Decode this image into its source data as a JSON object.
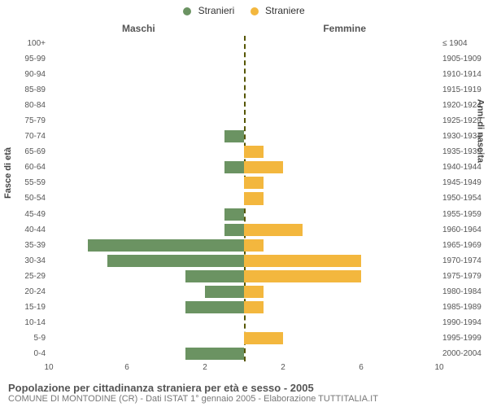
{
  "legend": {
    "male": {
      "label": "Stranieri",
      "color": "#6b9362"
    },
    "female": {
      "label": "Straniere",
      "color": "#f3b73e"
    }
  },
  "side_titles": {
    "left": "Maschi",
    "right": "Femmine"
  },
  "axis_titles": {
    "left": "Fasce di età",
    "right": "Anni di nascita"
  },
  "footer": {
    "title": "Popolazione per cittadinanza straniera per età e sesso - 2005",
    "subtitle": "COMUNE DI MONTODINE (CR) - Dati ISTAT 1° gennaio 2005 - Elaborazione TUTTITALIA.IT"
  },
  "chart": {
    "type": "population-pyramid",
    "background_color": "#ffffff",
    "center_line_color": "#555500",
    "xmax": 10,
    "x_ticks_left": [
      10,
      6,
      2
    ],
    "x_ticks_right": [
      2,
      6,
      10
    ],
    "bar_color_male": "#6b9362",
    "bar_color_female": "#f3b73e",
    "label_fontsize": 10,
    "rows": [
      {
        "age": "100+",
        "birth": "≤ 1904",
        "m": 0,
        "f": 0
      },
      {
        "age": "95-99",
        "birth": "1905-1909",
        "m": 0,
        "f": 0
      },
      {
        "age": "90-94",
        "birth": "1910-1914",
        "m": 0,
        "f": 0
      },
      {
        "age": "85-89",
        "birth": "1915-1919",
        "m": 0,
        "f": 0
      },
      {
        "age": "80-84",
        "birth": "1920-1924",
        "m": 0,
        "f": 0
      },
      {
        "age": "75-79",
        "birth": "1925-1929",
        "m": 0,
        "f": 0
      },
      {
        "age": "70-74",
        "birth": "1930-1934",
        "m": 1,
        "f": 0
      },
      {
        "age": "65-69",
        "birth": "1935-1939",
        "m": 0,
        "f": 1
      },
      {
        "age": "60-64",
        "birth": "1940-1944",
        "m": 1,
        "f": 2
      },
      {
        "age": "55-59",
        "birth": "1945-1949",
        "m": 0,
        "f": 1
      },
      {
        "age": "50-54",
        "birth": "1950-1954",
        "m": 0,
        "f": 1
      },
      {
        "age": "45-49",
        "birth": "1955-1959",
        "m": 1,
        "f": 0
      },
      {
        "age": "40-44",
        "birth": "1960-1964",
        "m": 1,
        "f": 3
      },
      {
        "age": "35-39",
        "birth": "1965-1969",
        "m": 8,
        "f": 1
      },
      {
        "age": "30-34",
        "birth": "1970-1974",
        "m": 7,
        "f": 6
      },
      {
        "age": "25-29",
        "birth": "1975-1979",
        "m": 3,
        "f": 6
      },
      {
        "age": "20-24",
        "birth": "1980-1984",
        "m": 2,
        "f": 1
      },
      {
        "age": "15-19",
        "birth": "1985-1989",
        "m": 3,
        "f": 1
      },
      {
        "age": "10-14",
        "birth": "1990-1994",
        "m": 0,
        "f": 0
      },
      {
        "age": "5-9",
        "birth": "1995-1999",
        "m": 0,
        "f": 2
      },
      {
        "age": "0-4",
        "birth": "2000-2004",
        "m": 3,
        "f": 0
      }
    ]
  }
}
